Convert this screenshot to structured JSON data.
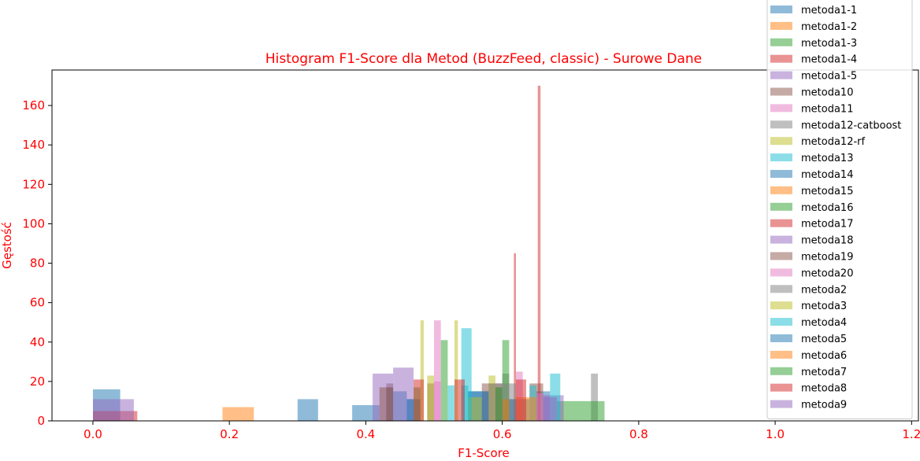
{
  "chart_data": {
    "type": "bar",
    "title": "Histogram F1-Score dla Metod (BuzzFeed, classic) - Surowe Dane",
    "xlabel": "F1-Score",
    "ylabel": "Gęstość",
    "xlim": [
      -0.06,
      1.21
    ],
    "ylim": [
      0,
      178
    ],
    "xticks": [
      "0.0",
      "0.2",
      "0.4",
      "0.6",
      "0.8",
      "1.0",
      "1.2"
    ],
    "yticks": [
      "0",
      "20",
      "40",
      "60",
      "80",
      "100",
      "120",
      "140",
      "160"
    ],
    "label_color": "#ff0000",
    "alpha": 0.5,
    "grid": false,
    "legend_position": "top-right",
    "series": [
      {
        "name": "metoda1-1",
        "color": "#1f77b4",
        "bars": [
          [
            0.0,
            0.04,
            16
          ],
          [
            0.3,
            0.33,
            11
          ],
          [
            0.38,
            0.42,
            8
          ],
          [
            0.46,
            0.48,
            11
          ],
          [
            0.55,
            0.58,
            15
          ],
          [
            0.6,
            0.64,
            11
          ],
          [
            0.65,
            0.67,
            15
          ]
        ]
      },
      {
        "name": "metoda1-2",
        "color": "#ff7f0e",
        "bars": [
          [
            0.19,
            0.236,
            7
          ]
        ]
      },
      {
        "name": "metoda1-3",
        "color": "#2ca02c",
        "bars": [
          [
            0.43,
            0.44,
            17
          ],
          [
            0.47,
            0.48,
            17
          ]
        ]
      },
      {
        "name": "metoda1-4",
        "color": "#d62728",
        "bars": [
          [
            0.0,
            0.065,
            5
          ]
        ]
      },
      {
        "name": "metoda1-5",
        "color": "#9467bd",
        "bars": [
          [
            0.0,
            0.04,
            11
          ],
          [
            0.04,
            0.06,
            11
          ]
        ]
      },
      {
        "name": "metoda10",
        "color": "#8c564b",
        "bars": [
          [
            0.43,
            0.44,
            19
          ],
          [
            0.49,
            0.5,
            19
          ],
          [
            0.57,
            0.6,
            19
          ],
          [
            0.64,
            0.66,
            19
          ]
        ]
      },
      {
        "name": "metoda11",
        "color": "#e377c2",
        "bars": [
          [
            0.5,
            0.51,
            51
          ],
          [
            0.62,
            0.63,
            25
          ]
        ]
      },
      {
        "name": "metoda12-catboost",
        "color": "#7f7f7f",
        "bars": [
          [
            0.43,
            0.44,
            17
          ],
          [
            0.6,
            0.61,
            24
          ],
          [
            0.73,
            0.74,
            24
          ]
        ]
      },
      {
        "name": "metoda12-rf",
        "color": "#bcbd22",
        "bars": [
          [
            0.48,
            0.485,
            51
          ],
          [
            0.53,
            0.535,
            51
          ],
          [
            0.49,
            0.5,
            23
          ],
          [
            0.58,
            0.59,
            23
          ]
        ]
      },
      {
        "name": "metoda13",
        "color": "#17becf",
        "bars": [
          [
            0.52,
            0.53,
            18
          ],
          [
            0.54,
            0.55,
            18
          ],
          [
            0.64,
            0.65,
            18
          ]
        ]
      },
      {
        "name": "metoda14",
        "color": "#1f77b4",
        "bars": [
          [
            0.44,
            0.46,
            15
          ],
          [
            0.55,
            0.57,
            15
          ],
          [
            0.6,
            0.62,
            11
          ]
        ]
      },
      {
        "name": "metoda15",
        "color": "#ff7f0e",
        "bars": [
          [
            0.62,
            0.65,
            12
          ]
        ]
      },
      {
        "name": "metoda16",
        "color": "#2ca02c",
        "bars": [
          [
            0.51,
            0.52,
            41
          ],
          [
            0.6,
            0.61,
            41
          ],
          [
            0.68,
            0.75,
            10
          ]
        ]
      },
      {
        "name": "metoda17",
        "color": "#d62728",
        "bars": [
          [
            0.617,
            0.62,
            85
          ],
          [
            0.652,
            0.656,
            170
          ]
        ]
      },
      {
        "name": "metoda18",
        "color": "#9467bd",
        "bars": [
          [
            0.41,
            0.44,
            24
          ],
          [
            0.44,
            0.47,
            27
          ],
          [
            0.66,
            0.69,
            13
          ]
        ]
      },
      {
        "name": "metoda19",
        "color": "#8c564b",
        "bars": [
          [
            0.42,
            0.44,
            17
          ],
          [
            0.59,
            0.6,
            17
          ]
        ]
      },
      {
        "name": "metoda20",
        "color": "#e377c2",
        "bars": [
          [
            0.5,
            0.51,
            20
          ],
          [
            0.65,
            0.66,
            14
          ]
        ]
      },
      {
        "name": "metoda2",
        "color": "#7f7f7f",
        "bars": [
          [
            0.58,
            0.6,
            19
          ],
          [
            0.6,
            0.62,
            19
          ]
        ]
      },
      {
        "name": "metoda3",
        "color": "#bcbd22",
        "bars": [
          [
            0.55,
            0.57,
            12
          ]
        ]
      },
      {
        "name": "metoda4",
        "color": "#17becf",
        "bars": [
          [
            0.54,
            0.555,
            47
          ],
          [
            0.67,
            0.685,
            24
          ]
        ]
      },
      {
        "name": "metoda5",
        "color": "#1f77b4",
        "bars": [
          [
            0.46,
            0.47,
            11
          ],
          [
            0.57,
            0.58,
            15
          ]
        ]
      },
      {
        "name": "metoda6",
        "color": "#ff7f0e",
        "bars": [
          [
            0.6,
            0.61,
            11
          ]
        ]
      },
      {
        "name": "metoda7",
        "color": "#2ca02c",
        "bars": [
          [
            0.59,
            0.6,
            17
          ]
        ]
      },
      {
        "name": "metoda8",
        "color": "#d62728",
        "bars": [
          [
            0.47,
            0.485,
            21
          ],
          [
            0.53,
            0.545,
            21
          ],
          [
            0.62,
            0.635,
            21
          ]
        ]
      },
      {
        "name": "metoda9",
        "color": "#9467bd",
        "bars": [
          [
            0.66,
            0.68,
            12
          ]
        ]
      }
    ]
  }
}
